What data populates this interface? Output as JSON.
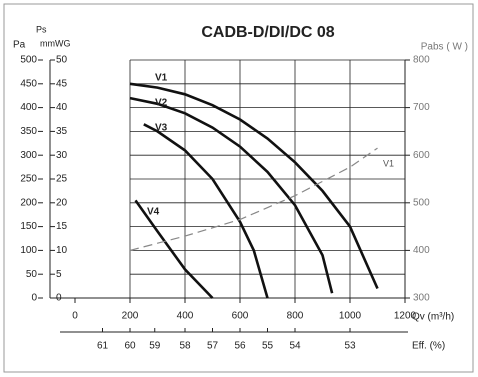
{
  "chart_data": {
    "type": "line",
    "title": "CADB-D/DI/DC 08",
    "ylabel": "Pa",
    "ylabel_top": "Ps",
    "mmwg_label": "mmWG",
    "y2label": "Pabs ( W )",
    "xlabel": "Qv (m³/h)",
    "xlim": [
      0,
      1200
    ],
    "xticks": [
      0,
      200,
      400,
      600,
      800,
      1000,
      1200
    ],
    "ylim": [
      0,
      500
    ],
    "yticks": [
      0,
      50,
      100,
      150,
      200,
      250,
      300,
      350,
      400,
      450,
      500
    ],
    "mmwg_lim": [
      0,
      50
    ],
    "mmwg_ticks": [
      0,
      5,
      10,
      15,
      20,
      25,
      30,
      35,
      40,
      45,
      50
    ],
    "y2lim": [
      300,
      800
    ],
    "y2ticks": [
      300,
      400,
      500,
      600,
      700,
      800
    ],
    "grid": true,
    "series": [
      {
        "name": "V1",
        "color": "#111111",
        "x": [
          200,
          300,
          400,
          500,
          600,
          700,
          800,
          900,
          1000,
          1100
        ],
        "values": [
          450,
          442,
          428,
          405,
          375,
          335,
          285,
          225,
          150,
          20
        ]
      },
      {
        "name": "V2",
        "color": "#111111",
        "x": [
          200,
          300,
          400,
          500,
          600,
          700,
          800,
          900,
          935
        ],
        "values": [
          420,
          408,
          388,
          358,
          318,
          265,
          195,
          90,
          10
        ]
      },
      {
        "name": "V3",
        "color": "#111111",
        "x": [
          250,
          300,
          400,
          500,
          600,
          650,
          700
        ],
        "values": [
          365,
          350,
          310,
          250,
          160,
          100,
          0
        ]
      },
      {
        "name": "V4",
        "color": "#111111",
        "x": [
          220,
          300,
          400,
          500
        ],
        "values": [
          205,
          140,
          60,
          0
        ]
      },
      {
        "name": "V1",
        "color": "#888888",
        "axis": "y2",
        "dashed": true,
        "x": [
          200,
          400,
          600,
          800,
          1000,
          1100
        ],
        "values": [
          400,
          430,
          465,
          515,
          575,
          615
        ]
      }
    ],
    "efficiency": {
      "label": "Eff. (%)",
      "x": [
        100,
        200,
        290,
        400,
        500,
        600,
        700,
        800,
        1000
      ],
      "values": [
        61,
        60,
        59,
        58,
        57,
        56,
        55,
        54,
        53
      ]
    }
  }
}
